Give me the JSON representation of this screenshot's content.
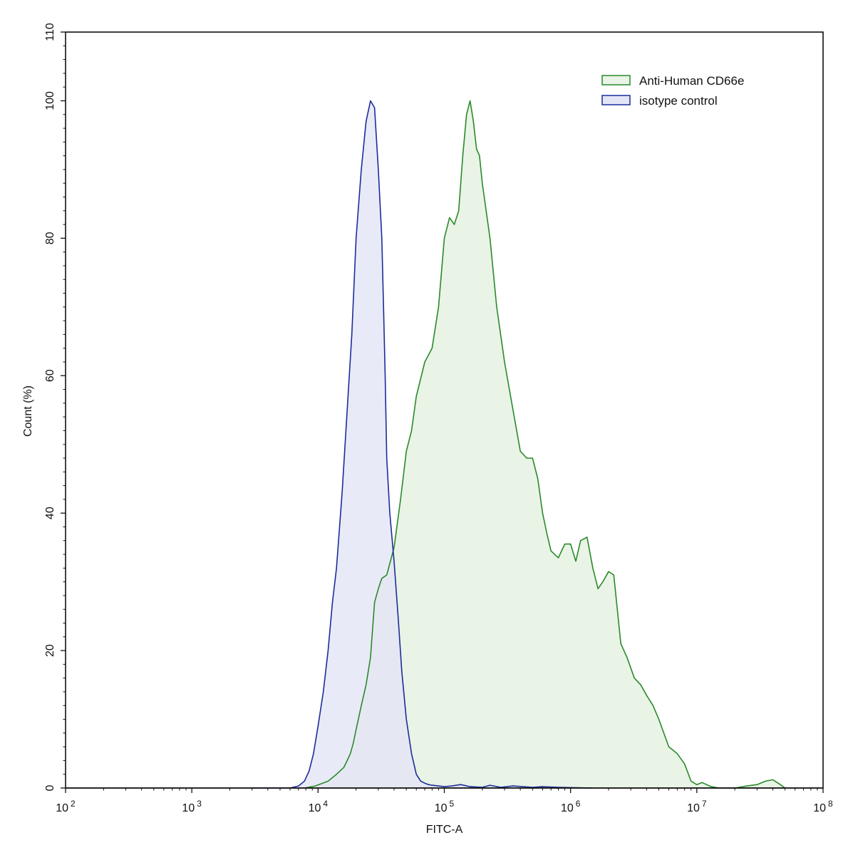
{
  "chart_data": {
    "type": "area",
    "xlabel": "FITC-A",
    "ylabel": "Count  (%)",
    "x_scale": "log",
    "xlim": [
      100,
      100000000
    ],
    "ylim": [
      0,
      110
    ],
    "x_ticks": [
      {
        "value": 100,
        "base": "10",
        "exp": "2"
      },
      {
        "value": 1000,
        "base": "10",
        "exp": "3"
      },
      {
        "value": 10000,
        "base": "10",
        "exp": "4"
      },
      {
        "value": 100000,
        "base": "10",
        "exp": "5"
      },
      {
        "value": 1000000,
        "base": "10",
        "exp": "6"
      },
      {
        "value": 10000000,
        "base": "10",
        "exp": "7"
      },
      {
        "value": 100000000,
        "base": "10",
        "exp": "8"
      }
    ],
    "y_ticks": [
      "0",
      "20",
      "40",
      "60",
      "80",
      "100",
      "110"
    ],
    "legend_position": "top-right",
    "grid": false,
    "series": [
      {
        "name": "Anti-Human CD66e",
        "color": "#2a8a2a",
        "fill": "#e9f3e6",
        "x": [
          7800,
          9500,
          12000,
          14000,
          16000,
          17000,
          18000,
          19000,
          20000,
          22000,
          24000,
          26000,
          28000,
          30000,
          32000,
          35000,
          40000,
          45000,
          50000,
          55000,
          60000,
          70000,
          80000,
          90000,
          100000,
          110000,
          120000,
          130000,
          140000,
          150000,
          160000,
          170000,
          180000,
          190000,
          200000,
          230000,
          260000,
          300000,
          350000,
          400000,
          450000,
          500000,
          550000,
          600000,
          650000,
          700000,
          800000,
          900000,
          1000000,
          1100000,
          1200000,
          1350000,
          1500000,
          1650000,
          1800000,
          2000000,
          2200000,
          2500000,
          2800000,
          3200000,
          3600000,
          4000000,
          4500000,
          5000000,
          6000000,
          7000000,
          8000000,
          9000000,
          10000000,
          11000000,
          13000000,
          15000000,
          20000000,
          25000000,
          30000000,
          35000000,
          40000000,
          45000000,
          50000000
        ],
        "y": [
          0,
          0.3,
          1,
          2,
          3,
          4,
          5,
          6.5,
          8.5,
          12,
          15,
          19,
          27,
          29,
          30.5,
          31,
          35,
          42,
          49,
          52,
          57,
          62,
          64,
          70,
          80,
          83,
          82,
          84,
          92,
          98,
          100,
          97,
          93,
          92,
          88,
          80,
          70,
          62,
          55,
          49,
          48,
          48,
          45,
          40,
          37,
          34.5,
          33.5,
          35.5,
          35.5,
          33,
          36,
          36.5,
          32,
          29,
          30,
          31.5,
          31,
          21,
          19,
          16,
          15,
          13.5,
          12,
          10,
          6,
          5,
          3.5,
          1,
          0.5,
          0.8,
          0.2,
          0,
          0,
          0.3,
          0.5,
          1,
          1.2,
          0.6,
          0
        ]
      },
      {
        "name": "isotype control",
        "color": "#1c2c9a",
        "fill": "#e3e5f6",
        "x": [
          3000,
          6000,
          7000,
          7800,
          8500,
          9200,
          10000,
          11000,
          12000,
          13000,
          14000,
          15500,
          17000,
          18500,
          20000,
          22000,
          24000,
          26000,
          28000,
          30000,
          32000,
          33000,
          34000,
          35000,
          37000,
          40000,
          43000,
          46000,
          50000,
          55000,
          60000,
          65000,
          70000,
          75000,
          80000,
          90000,
          100000,
          115000,
          135000,
          160000,
          200000,
          230000,
          280000,
          350000,
          500000,
          600000,
          800000,
          1500000
        ],
        "y": [
          0,
          0,
          0.3,
          1,
          2.5,
          5,
          9,
          14,
          20,
          27,
          32,
          43,
          55,
          66,
          80,
          90,
          97,
          100,
          99,
          90,
          80,
          70,
          60,
          48,
          40,
          33,
          25,
          17,
          10,
          5,
          2,
          1,
          0.7,
          0.5,
          0.4,
          0.3,
          0.2,
          0.3,
          0.5,
          0.2,
          0.1,
          0.4,
          0.1,
          0.3,
          0.1,
          0.2,
          0.1,
          0
        ]
      }
    ]
  }
}
